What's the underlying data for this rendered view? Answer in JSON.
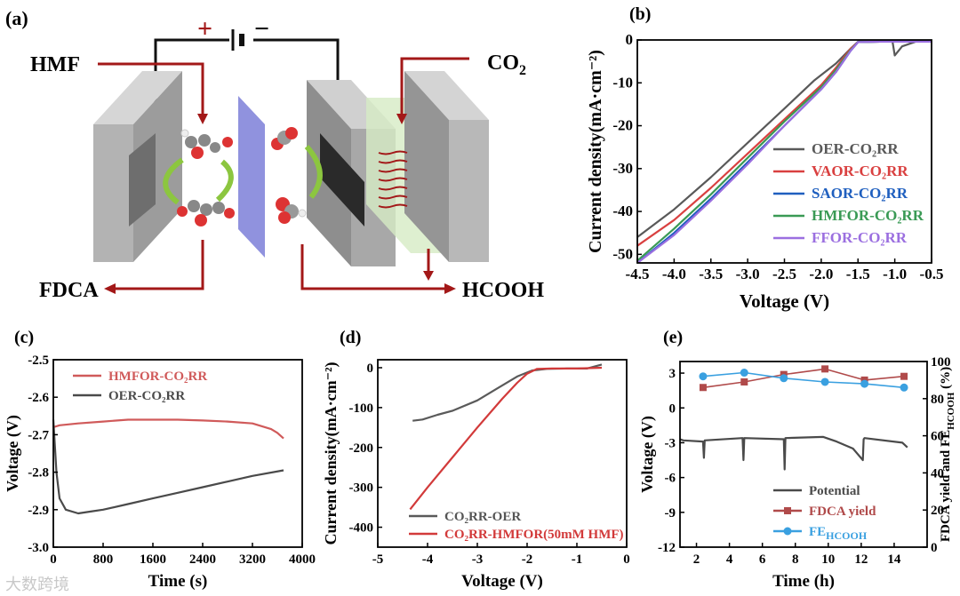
{
  "figure": {
    "panel_a": {
      "label": "(a)",
      "labels": {
        "hmf": "HMF",
        "co2": "CO",
        "co2_sub": "2",
        "fdca": "FDCA",
        "hcooh": "HCOOH",
        "plus": "+",
        "minus": "−"
      },
      "colors": {
        "arrow": "#a31818",
        "membrane": "#7d7fd8",
        "electrode": "#a9a9a9",
        "wire": "#111111"
      }
    },
    "watermark": "大数跨境"
  },
  "chart_data": [
    {
      "panel": "(b)",
      "type": "line",
      "xlabel": "Voltage (V)",
      "ylabel": "Current density(mA·cm⁻²)",
      "xlim": [
        -4.5,
        -0.5
      ],
      "ylim": [
        -52,
        0
      ],
      "xticks": [
        -4.5,
        -4.0,
        -3.5,
        -3.0,
        -2.5,
        -2.0,
        -1.5,
        -1.0,
        -0.5
      ],
      "xtick_labels": [
        "-4.5",
        "-4.0",
        "-3.5",
        "-3.0",
        "-2.5",
        "-2.0",
        "-1.5",
        "-1.0",
        "-0.5"
      ],
      "yticks": [
        0,
        -10,
        -20,
        -30,
        -40,
        -50
      ],
      "ytick_labels": [
        "0",
        "-10",
        "-20",
        "-30",
        "-40",
        "-50"
      ],
      "legend_position": "right",
      "series": [
        {
          "name": "OER-CO₂RR",
          "color": "#595959",
          "x": [
            -4.5,
            -4.0,
            -3.5,
            -3.0,
            -2.5,
            -2.1,
            -1.8,
            -1.6,
            -1.5,
            -1.2,
            -1.03,
            -1.0,
            -0.9,
            -0.7,
            -0.5
          ],
          "y": [
            -46,
            -39.5,
            -32,
            -24,
            -16,
            -9.5,
            -5.5,
            -2.0,
            -0.4,
            -0.4,
            -0.4,
            -3.6,
            -1.5,
            -0.3,
            -0.3
          ]
        },
        {
          "name": "VAOR-CO₂RR",
          "color": "#d94040",
          "x": [
            -4.5,
            -4.0,
            -3.5,
            -3.0,
            -2.5,
            -2.0,
            -1.8,
            -1.6,
            -1.5,
            -1.2,
            -0.5
          ],
          "y": [
            -48,
            -42,
            -34.5,
            -26.5,
            -18.5,
            -10.5,
            -6.5,
            -2.0,
            -0.5,
            -0.4,
            -0.4
          ]
        },
        {
          "name": "SAOR-CO₂RR",
          "color": "#1f5fbf",
          "x": [
            -4.5,
            -4.0,
            -3.5,
            -3.0,
            -2.5,
            -2.0,
            -1.8,
            -1.6,
            -1.5,
            -1.2,
            -0.5
          ],
          "y": [
            -52,
            -45,
            -37,
            -28.5,
            -20,
            -11.5,
            -7.5,
            -2.5,
            -0.5,
            -0.4,
            -0.4
          ]
        },
        {
          "name": "HMFOR-CO₂RR",
          "color": "#3a9a55",
          "x": [
            -4.5,
            -4.0,
            -3.5,
            -3.0,
            -2.5,
            -2.0,
            -1.8,
            -1.6,
            -1.5,
            -1.2,
            -0.5
          ],
          "y": [
            -51.5,
            -44,
            -36,
            -27.5,
            -19,
            -11,
            -7,
            -2.3,
            -0.5,
            -0.4,
            -0.4
          ]
        },
        {
          "name": "FFOR-CO₂RR",
          "color": "#9b6fe0",
          "x": [
            -4.5,
            -4.0,
            -3.5,
            -3.0,
            -2.5,
            -2.0,
            -1.8,
            -1.6,
            -1.5,
            -1.2,
            -0.5
          ],
          "y": [
            -52,
            -45.5,
            -37.5,
            -29,
            -20,
            -11.5,
            -7.5,
            -2.5,
            -0.5,
            -0.4,
            -0.4
          ]
        }
      ]
    },
    {
      "panel": "(c)",
      "type": "line",
      "xlabel": "Time (s)",
      "ylabel": "Voltage (V)",
      "xlim": [
        0,
        4000
      ],
      "ylim": [
        -3.0,
        -2.5
      ],
      "xticks": [
        0,
        800,
        1600,
        2400,
        3200,
        4000
      ],
      "xtick_labels": [
        "0",
        "800",
        "1600",
        "2400",
        "3200",
        "4000"
      ],
      "yticks": [
        -2.5,
        -2.6,
        -2.7,
        -2.8,
        -2.9,
        -3.0
      ],
      "ytick_labels": [
        "-2.5",
        "-2.6",
        "-2.7",
        "-2.8",
        "-2.9",
        "-3.0"
      ],
      "legend_position": "top-left",
      "series": [
        {
          "name": "HMFOR-CO₂RR",
          "color": "#d05a5a",
          "x": [
            0,
            100,
            400,
            800,
            1200,
            1600,
            2000,
            2400,
            2800,
            3200,
            3500,
            3600,
            3700
          ],
          "y": [
            -2.68,
            -2.675,
            -2.67,
            -2.665,
            -2.66,
            -2.66,
            -2.66,
            -2.662,
            -2.665,
            -2.67,
            -2.685,
            -2.695,
            -2.71
          ]
        },
        {
          "name": "OER-CO₂RR",
          "color": "#4a4a4a",
          "x": [
            0,
            50,
            100,
            200,
            400,
            600,
            800,
            1200,
            1600,
            2000,
            2400,
            2800,
            3200,
            3700
          ],
          "y": [
            -2.66,
            -2.8,
            -2.87,
            -2.9,
            -2.91,
            -2.905,
            -2.9,
            -2.885,
            -2.87,
            -2.855,
            -2.84,
            -2.825,
            -2.81,
            -2.795
          ]
        }
      ]
    },
    {
      "panel": "(d)",
      "type": "line",
      "xlabel": "Voltage (V)",
      "ylabel": "Current density(mA·cm⁻²)",
      "xlim": [
        -5,
        0
      ],
      "ylim": [
        -450,
        20
      ],
      "xticks": [
        -5,
        -4,
        -3,
        -2,
        -1,
        0
      ],
      "xtick_labels": [
        "-5",
        "-4",
        "-3",
        "-2",
        "-1",
        "0"
      ],
      "yticks": [
        0,
        -100,
        -200,
        -300,
        -400
      ],
      "ytick_labels": [
        "0",
        "-100",
        "-200",
        "-300",
        "-400"
      ],
      "legend_position": "bottom-right",
      "series": [
        {
          "name": "CO₂RR-OER",
          "color": "#5a5a5a",
          "x": [
            -4.3,
            -4.1,
            -3.8,
            -3.5,
            -3.0,
            -2.6,
            -2.2,
            -1.9,
            -1.6,
            -1.2,
            -0.8,
            -0.5
          ],
          "y": [
            -133,
            -130,
            -118,
            -108,
            -82,
            -52,
            -22,
            -7,
            -3,
            -2,
            -2,
            8
          ]
        },
        {
          "name": "CO₂RR-HMFOR(50mM HMF)",
          "color": "#d23a3a",
          "x": [
            -4.35,
            -4.0,
            -3.5,
            -3.0,
            -2.5,
            -2.2,
            -2.0,
            -1.8,
            -1.5,
            -1.0,
            -0.5
          ],
          "y": [
            -355,
            -300,
            -225,
            -150,
            -78,
            -38,
            -15,
            -3,
            -2,
            -2,
            0
          ]
        }
      ]
    },
    {
      "panel": "(e)",
      "type": "line",
      "xlabel": "Time (h)",
      "ylabel": "Voltage (V)",
      "ylabel_right": "FDCA yield and FE",
      "ylabel_right_sub": "HCOOH",
      "ylabel_right_unit": " (%)",
      "xlim": [
        1,
        16
      ],
      "ylim": [
        -12,
        4
      ],
      "ylim_right": [
        0,
        100
      ],
      "xticks": [
        2,
        4,
        6,
        8,
        10,
        12,
        14
      ],
      "xtick_labels": [
        "2",
        "4",
        "6",
        "8",
        "10",
        "12",
        "14"
      ],
      "yticks": [
        3,
        0,
        -3,
        -6,
        -9,
        -12
      ],
      "ytick_labels": [
        "3",
        "0",
        "-3",
        "-6",
        "-9",
        "-12"
      ],
      "yticks_right": [
        0,
        20,
        40,
        60,
        80,
        100
      ],
      "ytick_labels_right": [
        "0",
        "20",
        "40",
        "60",
        "80",
        "100"
      ],
      "legend_position": "bottom-right",
      "series": [
        {
          "name": "Potential",
          "color": "#4a4a4a",
          "axis": "left",
          "x": [
            1.0,
            1.2,
            2.4,
            2.45,
            2.5,
            4.8,
            4.85,
            4.9,
            7.3,
            7.35,
            7.4,
            9.7,
            10.5,
            11.5,
            12.1,
            12.15,
            12.2,
            14.5,
            14.8
          ],
          "y": [
            -2.7,
            -2.8,
            -2.9,
            -4.3,
            -2.8,
            -2.6,
            -4.5,
            -2.6,
            -2.7,
            -5.3,
            -2.6,
            -2.5,
            -2.9,
            -3.5,
            -4.5,
            -2.7,
            -2.6,
            -3.0,
            -3.4
          ]
        },
        {
          "name": "FDCA yield",
          "color": "#b04a4a",
          "axis": "right",
          "marker": "square",
          "x": [
            2.4,
            4.9,
            7.3,
            9.8,
            12.2,
            14.6
          ],
          "y": [
            86,
            89,
            93,
            96,
            90,
            92
          ]
        },
        {
          "name": "FE",
          "name_sub": "HCOOH",
          "color": "#3aa0e0",
          "axis": "right",
          "marker": "circle",
          "x": [
            2.4,
            4.9,
            7.3,
            9.8,
            12.2,
            14.6
          ],
          "y": [
            92,
            94,
            91,
            89,
            88,
            86
          ]
        }
      ]
    }
  ]
}
